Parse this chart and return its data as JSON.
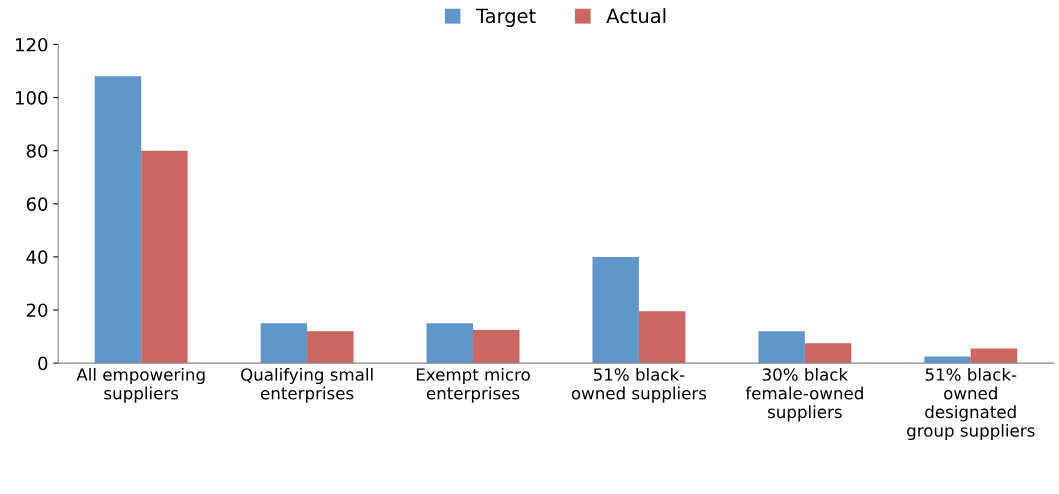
{
  "chart_data": {
    "type": "bar",
    "categories": [
      "All empowering\nsuppliers",
      "Qualifying small\nenterprises",
      "Exempt micro\nenterprises",
      "51% black-\nowned suppliers",
      "30% black\nfemale-owned\nsuppliers",
      "51% black-\nowned\ndesignated\ngroup suppliers"
    ],
    "series": [
      {
        "name": "Target",
        "color": "#6097cb",
        "values": [
          108,
          15,
          15,
          40,
          12,
          2.5
        ]
      },
      {
        "name": "Actual",
        "color": "#cc6660",
        "values": [
          80,
          12,
          12.5,
          19.5,
          7.5,
          5.5
        ]
      }
    ],
    "ylim": [
      0,
      120
    ],
    "yticks": [
      0,
      20,
      40,
      60,
      80,
      100,
      120
    ],
    "grid": false,
    "legend": "top"
  }
}
